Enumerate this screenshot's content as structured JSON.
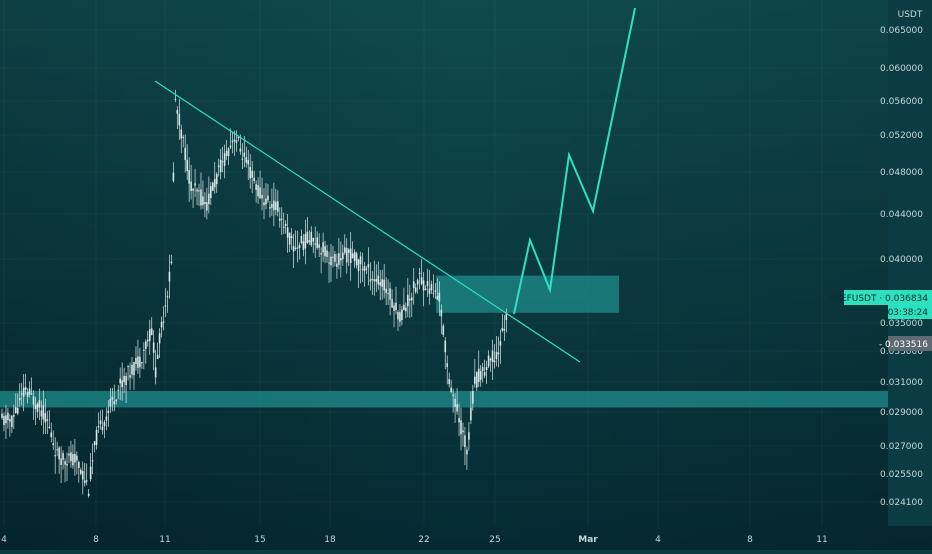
{
  "chart_data": {
    "type": "candlestick",
    "symbol": "REEFUSDT",
    "currency_label": "USDT",
    "price_scale": {
      "ticks": [
        "0.065000",
        "0.060000",
        "0.056000",
        "0.052000",
        "0.048000",
        "0.044000",
        "0.040000",
        "0.035000",
        "0.033000",
        "0.031000",
        "0.029000",
        "0.027000",
        "0.025500",
        "0.024100"
      ],
      "tick_values": [
        0.065,
        0.06,
        0.056,
        0.052,
        0.048,
        0.044,
        0.04,
        0.035,
        0.033,
        0.031,
        0.029,
        0.027,
        0.0255,
        0.0241
      ]
    },
    "time_axis": {
      "labels": [
        "4",
        "8",
        "11",
        "15",
        "18",
        "22",
        "25",
        "Mar",
        "4",
        "8",
        "11"
      ],
      "bold_labels": [
        "Mar"
      ]
    },
    "last_price_label": {
      "symbol": "REEFUSDT",
      "value": "0.036834",
      "countdown": "03:38:24"
    },
    "secondary_price_label": "0.033516",
    "annotations": {
      "descending_trendline": true,
      "support_zone": true,
      "breakout_zone": true,
      "projected_path": "zigzag-up"
    },
    "colors": {
      "background_top": "#0f4a4f",
      "background_bottom": "#062a33",
      "candle": "#d9e6e6",
      "accent": "#2de0c0",
      "zone": "#1f8c8c",
      "axis_text": "#c7d6d8"
    }
  }
}
